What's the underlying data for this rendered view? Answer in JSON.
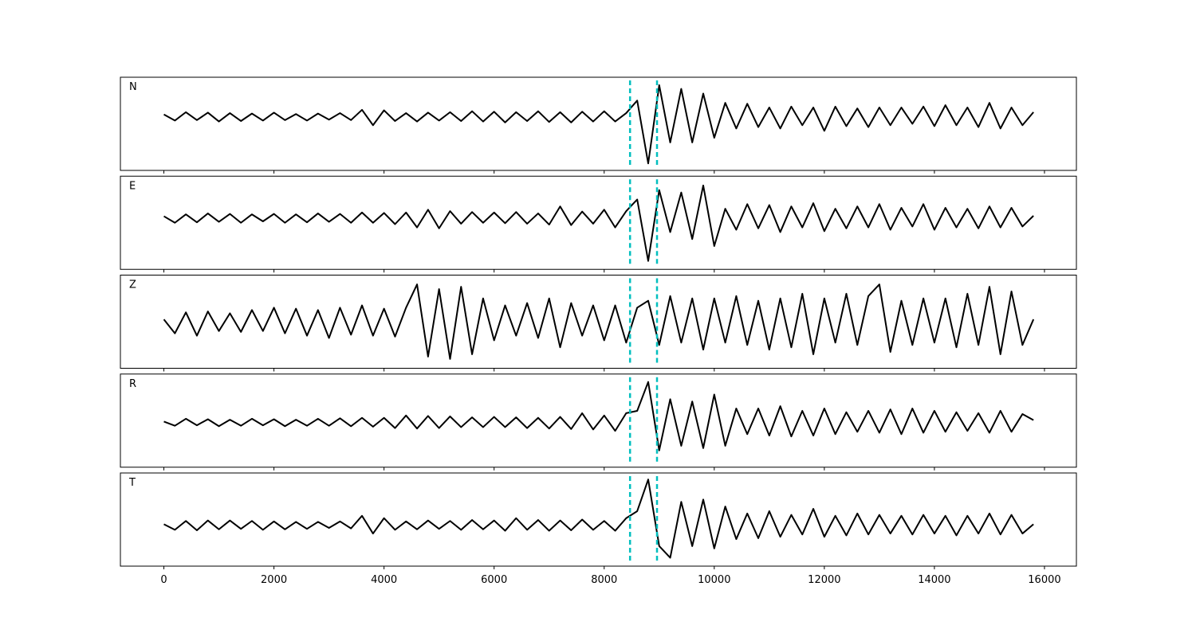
{
  "chart_data": {
    "type": "line",
    "x": [
      0,
      200,
      400,
      600,
      800,
      1000,
      1200,
      1400,
      1600,
      1800,
      2000,
      2200,
      2400,
      2600,
      2800,
      3000,
      3200,
      3400,
      3600,
      3800,
      4000,
      4200,
      4400,
      4600,
      4800,
      5000,
      5200,
      5400,
      5600,
      5800,
      6000,
      6200,
      6400,
      6600,
      6800,
      7000,
      7200,
      7400,
      7600,
      7800,
      8000,
      8200,
      8400,
      8600,
      8800,
      9000,
      9200,
      9400,
      9600,
      9800,
      10000,
      10200,
      10400,
      10600,
      10800,
      11000,
      11200,
      11400,
      11600,
      11800,
      12000,
      12200,
      12400,
      12600,
      12800,
      13000,
      13200,
      13400,
      13600,
      13800,
      14000,
      14200,
      14400,
      14600,
      14800,
      15000,
      15200,
      15400,
      15600,
      15800
    ],
    "xlim": [
      -790,
      16580
    ],
    "xticks": [
      0,
      2000,
      4000,
      6000,
      8000,
      10000,
      12000,
      14000,
      16000
    ],
    "markers": [
      8470,
      8960
    ],
    "marker_color": "#00bfbf",
    "series": [
      {
        "name": "N",
        "color": "#000000",
        "ylim": [
          -1.15,
          0.85
        ],
        "values": [
          0.05,
          -0.08,
          0.1,
          -0.07,
          0.09,
          -0.1,
          0.08,
          -0.09,
          0.07,
          -0.08,
          0.09,
          -0.07,
          0.06,
          -0.08,
          0.07,
          -0.06,
          0.08,
          -0.07,
          0.15,
          -0.18,
          0.14,
          -0.09,
          0.08,
          -0.1,
          0.09,
          -0.08,
          0.1,
          -0.09,
          0.12,
          -0.1,
          0.11,
          -0.12,
          0.1,
          -0.09,
          0.12,
          -0.11,
          0.1,
          -0.12,
          0.11,
          -0.1,
          0.12,
          -0.1,
          0.08,
          0.35,
          -1.0,
          0.68,
          -0.55,
          0.6,
          -0.55,
          0.5,
          -0.45,
          0.3,
          -0.25,
          0.28,
          -0.22,
          0.2,
          -0.25,
          0.22,
          -0.18,
          0.2,
          -0.3,
          0.22,
          -0.2,
          0.18,
          -0.22,
          0.2,
          -0.18,
          0.2,
          -0.15,
          0.22,
          -0.2,
          0.25,
          -0.18,
          0.2,
          -0.22,
          0.3,
          -0.25,
          0.2,
          -0.18,
          0.1
        ]
      },
      {
        "name": "E",
        "color": "#000000",
        "ylim": [
          -1.1,
          0.9
        ],
        "values": [
          0.04,
          -0.1,
          0.08,
          -0.09,
          0.1,
          -0.08,
          0.09,
          -0.1,
          0.08,
          -0.07,
          0.09,
          -0.1,
          0.08,
          -0.09,
          0.1,
          -0.08,
          0.09,
          -0.1,
          0.12,
          -0.1,
          0.11,
          -0.13,
          0.12,
          -0.2,
          0.18,
          -0.22,
          0.15,
          -0.12,
          0.13,
          -0.1,
          0.12,
          -0.11,
          0.13,
          -0.12,
          0.1,
          -0.14,
          0.25,
          -0.15,
          0.14,
          -0.12,
          0.18,
          -0.2,
          0.15,
          0.4,
          -0.92,
          0.6,
          -0.3,
          0.55,
          -0.45,
          0.7,
          -0.6,
          0.2,
          -0.25,
          0.3,
          -0.22,
          0.28,
          -0.3,
          0.25,
          -0.2,
          0.32,
          -0.28,
          0.2,
          -0.22,
          0.25,
          -0.2,
          0.3,
          -0.25,
          0.22,
          -0.18,
          0.3,
          -0.25,
          0.22,
          -0.2,
          0.2,
          -0.22,
          0.25,
          -0.2,
          0.22,
          -0.18,
          0.05
        ]
      },
      {
        "name": "Z",
        "color": "#000000",
        "ylim": [
          -1,
          1
        ],
        "values": [
          0.05,
          -0.25,
          0.2,
          -0.3,
          0.22,
          -0.2,
          0.18,
          -0.22,
          0.25,
          -0.2,
          0.3,
          -0.25,
          0.28,
          -0.3,
          0.25,
          -0.35,
          0.3,
          -0.28,
          0.35,
          -0.3,
          0.28,
          -0.32,
          0.3,
          0.8,
          -0.75,
          0.7,
          -0.8,
          0.75,
          -0.7,
          0.5,
          -0.4,
          0.35,
          -0.3,
          0.4,
          -0.35,
          0.5,
          -0.55,
          0.4,
          -0.3,
          0.35,
          -0.4,
          0.35,
          -0.45,
          0.3,
          0.45,
          -0.5,
          0.55,
          -0.45,
          0.5,
          -0.6,
          0.5,
          -0.45,
          0.55,
          -0.5,
          0.45,
          -0.6,
          0.5,
          -0.55,
          0.6,
          -0.7,
          0.5,
          -0.45,
          0.6,
          -0.5,
          0.55,
          0.8,
          -0.65,
          0.45,
          -0.5,
          0.5,
          -0.45,
          0.5,
          -0.55,
          0.6,
          -0.5,
          0.75,
          -0.7,
          0.65,
          -0.5,
          0.05
        ]
      },
      {
        "name": "R",
        "color": "#000000",
        "ylim": [
          -0.96,
          1.04
        ],
        "values": [
          0.02,
          -0.07,
          0.08,
          -0.06,
          0.07,
          -0.08,
          0.06,
          -0.07,
          0.08,
          -0.06,
          0.07,
          -0.08,
          0.06,
          -0.07,
          0.08,
          -0.07,
          0.09,
          -0.08,
          0.1,
          -0.09,
          0.1,
          -0.12,
          0.15,
          -0.13,
          0.14,
          -0.12,
          0.13,
          -0.1,
          0.11,
          -0.1,
          0.12,
          -0.1,
          0.11,
          -0.12,
          0.1,
          -0.13,
          0.12,
          -0.14,
          0.2,
          -0.15,
          0.15,
          -0.18,
          0.2,
          0.25,
          0.87,
          -0.6,
          0.5,
          -0.5,
          0.45,
          -0.55,
          0.6,
          -0.5,
          0.3,
          -0.25,
          0.3,
          -0.28,
          0.35,
          -0.3,
          0.25,
          -0.28,
          0.3,
          -0.25,
          0.22,
          -0.2,
          0.25,
          -0.22,
          0.28,
          -0.25,
          0.3,
          -0.22,
          0.25,
          -0.2,
          0.22,
          -0.18,
          0.2,
          -0.22,
          0.25,
          -0.2,
          0.18,
          0.05
        ]
      },
      {
        "name": "T",
        "color": "#000000",
        "ylim": [
          -0.88,
          1.12
        ],
        "values": [
          0.02,
          -0.1,
          0.09,
          -0.11,
          0.1,
          -0.09,
          0.1,
          -0.08,
          0.09,
          -0.1,
          0.08,
          -0.09,
          0.07,
          -0.08,
          0.07,
          -0.06,
          0.08,
          -0.07,
          0.2,
          -0.18,
          0.15,
          -0.1,
          0.08,
          -0.09,
          0.1,
          -0.08,
          0.09,
          -0.1,
          0.11,
          -0.09,
          0.1,
          -0.12,
          0.15,
          -0.1,
          0.11,
          -0.12,
          0.1,
          -0.11,
          0.12,
          -0.1,
          0.09,
          -0.12,
          0.15,
          0.3,
          0.98,
          -0.45,
          -0.7,
          0.5,
          -0.45,
          0.55,
          -0.5,
          0.4,
          -0.3,
          0.25,
          -0.28,
          0.3,
          -0.25,
          0.22,
          -0.2,
          0.35,
          -0.25,
          0.2,
          -0.22,
          0.25,
          -0.2,
          0.22,
          -0.18,
          0.2,
          -0.2,
          0.22,
          -0.18,
          0.2,
          -0.22,
          0.2,
          -0.18,
          0.25,
          -0.2,
          0.22,
          -0.18,
          0.02
        ]
      }
    ]
  }
}
